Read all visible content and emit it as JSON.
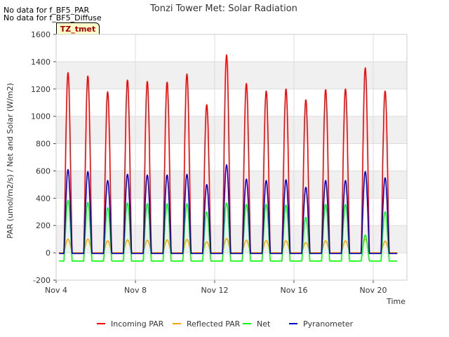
{
  "no_data_notes": [
    "No data for f_BF5_PAR",
    "No data for f_BF5_Diffuse"
  ],
  "site_tag": "TZ_tmet",
  "chart_data": {
    "type": "line",
    "title": "Tonzi Tower Met: Solar Radiation",
    "xlabel": "Time",
    "ylabel": "PAR (umol/m2/s) / Net and Solar (W/m2)",
    "xlim": [
      4,
      21.7
    ],
    "ylim": [
      -200,
      1600
    ],
    "x_unit": "day of November",
    "x_ticks": [
      {
        "value": 4,
        "label": "Nov 4"
      },
      {
        "value": 8,
        "label": "Nov 8"
      },
      {
        "value": 12,
        "label": "Nov 12"
      },
      {
        "value": 16,
        "label": "Nov 16"
      },
      {
        "value": 20,
        "label": "Nov 20"
      }
    ],
    "y_ticks": [
      -200,
      0,
      200,
      400,
      600,
      800,
      1000,
      1200,
      1400,
      1600
    ],
    "grid": true,
    "legend_position": "bottom",
    "days": [
      4.6,
      5.6,
      6.6,
      7.6,
      8.6,
      9.6,
      10.6,
      11.6,
      12.6,
      13.6,
      14.6,
      15.6,
      16.6,
      17.6,
      18.6,
      19.6,
      20.6
    ],
    "series": [
      {
        "name": "Incoming PAR",
        "color": "#ff0000",
        "night": 0,
        "daily_peak": [
          1320,
          1295,
          1180,
          1265,
          1255,
          1250,
          1310,
          1085,
          1450,
          1240,
          1185,
          1200,
          1120,
          1195,
          1200,
          1355,
          1185
        ]
      },
      {
        "name": "Reflected PAR",
        "color": "#ffa500",
        "night": 0,
        "daily_peak": [
          100,
          100,
          88,
          95,
          92,
          95,
          98,
          80,
          105,
          92,
          90,
          88,
          75,
          88,
          88,
          100,
          85
        ]
      },
      {
        "name": "Net",
        "color": "#00ff00",
        "night": -60,
        "daily_peak": [
          385,
          370,
          330,
          365,
          360,
          360,
          360,
          300,
          365,
          355,
          355,
          350,
          260,
          355,
          355,
          130,
          300
        ]
      },
      {
        "name": "Pyranometer",
        "color": "#0000cc",
        "night": -5,
        "daily_peak": [
          610,
          595,
          530,
          575,
          570,
          570,
          575,
          500,
          645,
          540,
          530,
          535,
          480,
          530,
          530,
          595,
          550
        ]
      }
    ]
  }
}
